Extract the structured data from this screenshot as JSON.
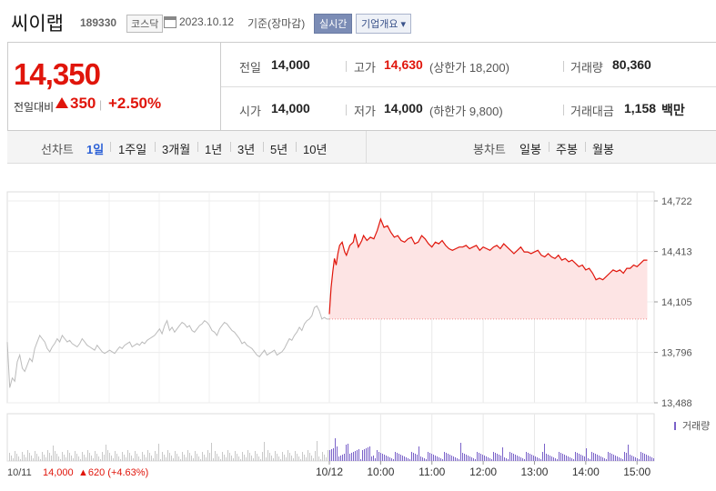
{
  "header": {
    "name": "씨이랩",
    "code": "189330",
    "market": "코스닥",
    "date": "2023.10.12",
    "basis": "기준(장마감)",
    "live_btn": "실시간",
    "info_btn": "기업개요 ▾"
  },
  "quote": {
    "price": "14,350",
    "diff_label": "전일대비",
    "diff": "350",
    "sep": "|",
    "rate": "+2.50%"
  },
  "stats": {
    "prev_label": "전일",
    "prev": "14,000",
    "high_label": "고가",
    "high": "14,630",
    "upper_limit": "(상한가 18,200)",
    "volume_label": "거래량",
    "volume": "80,360",
    "open_label": "시가",
    "open": "14,000",
    "low_label": "저가",
    "low": "14,000",
    "lower_limit": "(하한가 9,800)",
    "amount_label": "거래대금",
    "amount": "1,158",
    "amount_unit": "백만"
  },
  "tabs": {
    "line_label": "선차트",
    "line": [
      "1일",
      "1주일",
      "3개월",
      "1년",
      "3년",
      "5년",
      "10년"
    ],
    "candle_label": "봉차트",
    "candle": [
      "일봉",
      "주봉",
      "월봉"
    ]
  },
  "colors": {
    "up": "#e0150b",
    "prevday": "#bbbbbb",
    "volume": "#7a62c9",
    "accent": "#2a5fd6"
  },
  "chart_data": {
    "type": "line",
    "y_ticks": [
      "14,722",
      "14,413",
      "14,105",
      "13,796",
      "13,488"
    ],
    "ylim": [
      13488,
      14722
    ],
    "x_ticks": [
      "10/12",
      "10:00",
      "11:00",
      "12:00",
      "13:00",
      "14:00",
      "15:00"
    ],
    "x_minutes": [
      0,
      60,
      120,
      180,
      240,
      300,
      360
    ],
    "prev_day_label": "10/11",
    "prev_day_close": "14,000",
    "prev_day_change": "▲620 (+4.63%)",
    "volume_legend": "거래량",
    "series": [
      {
        "x": [
          0,
          2,
          4,
          6,
          8,
          10,
          12,
          15,
          18,
          20,
          24,
          28,
          30,
          34,
          38,
          40,
          44,
          48,
          52,
          56,
          60,
          64,
          68,
          72,
          76,
          80,
          84,
          88,
          92,
          96,
          100,
          104,
          108,
          112,
          116,
          120,
          124,
          128,
          132,
          136,
          140,
          144,
          148,
          152,
          156,
          160,
          164,
          168,
          172,
          176,
          180,
          184,
          188,
          192,
          196,
          200,
          204,
          208,
          212,
          216,
          220,
          224,
          228,
          232,
          236,
          240,
          244,
          248,
          252,
          256,
          260,
          264,
          268,
          272,
          276,
          280,
          284,
          288,
          292,
          296,
          300,
          304,
          308,
          312,
          316,
          320,
          324,
          328,
          332,
          336,
          340,
          344,
          348,
          352,
          356,
          360,
          364,
          368,
          372
        ],
        "values": [
          14030,
          14190,
          14290,
          14370,
          14330,
          14400,
          14450,
          14470,
          14410,
          14390,
          14450,
          14470,
          14520,
          14440,
          14480,
          14510,
          14480,
          14500,
          14490,
          14540,
          14610,
          14560,
          14570,
          14530,
          14500,
          14510,
          14480,
          14470,
          14490,
          14500,
          14460,
          14470,
          14510,
          14490,
          14460,
          14440,
          14470,
          14460,
          14480,
          14450,
          14430,
          14420,
          14430,
          14440,
          14440,
          14450,
          14430,
          14440,
          14450,
          14420,
          14440,
          14430,
          14420,
          14440,
          14450,
          14430,
          14460,
          14440,
          14420,
          14400,
          14420,
          14440,
          14410,
          14410,
          14400,
          14410,
          14420,
          14390,
          14380,
          14400,
          14380,
          14370,
          14390,
          14360,
          14370,
          14350,
          14360,
          14340,
          14320,
          14330,
          14300,
          14310,
          14280,
          14240,
          14250,
          14240,
          14260,
          14280,
          14300,
          14290,
          14300,
          14280,
          14310,
          14310,
          14330,
          14320,
          14340,
          14360,
          14360
        ]
      }
    ],
    "prev_day_series": [
      13860,
      13580,
      13640,
      13620,
      13740,
      13780,
      13700,
      13680,
      13720,
      13760,
      13740,
      13820,
      13860,
      13900,
      13880,
      13860,
      13820,
      13800,
      13830,
      13850,
      13880,
      13860,
      13900,
      13880,
      13860,
      13870,
      13850,
      13840,
      13830,
      13850,
      13880,
      13860,
      13840,
      13830,
      13820,
      13810,
      13840,
      13820,
      13800,
      13790,
      13800,
      13810,
      13800,
      13790,
      13810,
      13830,
      13820,
      13840,
      13850,
      13860,
      13830,
      13840,
      13850,
      13840,
      13860,
      13850,
      13870,
      13880,
      13890,
      13900,
      13920,
      13940,
      13910,
      13960,
      13990,
      13930,
      13950,
      13920,
      13940,
      13960,
      13980,
      13970,
      13950,
      13960,
      13930,
      13920,
      13940,
      13960,
      13970,
      13990,
      13980,
      13960,
      13930,
      13920,
      13900,
      13940,
      13960,
      13980,
      13970,
      13950,
      13930,
      13920,
      13900,
      13880,
      13850,
      13860,
      13840,
      13830,
      13820,
      13800,
      13780,
      13770,
      13790,
      13810,
      13780,
      13790,
      13800,
      13810,
      13780,
      13790,
      13800,
      13820,
      13850,
      13880,
      13870,
      13900,
      13920,
      13950,
      13930,
      13970,
      13990,
      14000,
      14020,
      14070,
      14080,
      14050,
      14000,
      14010,
      14000,
      14000
    ]
  }
}
